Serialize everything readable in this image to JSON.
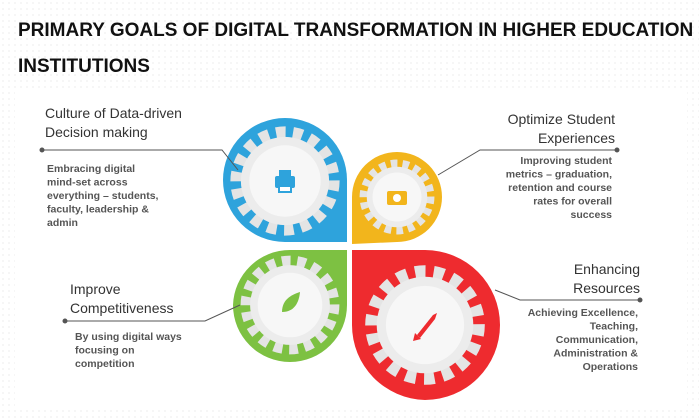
{
  "header": {
    "title_lines": [
      "PRIMARY GOALS OF DIGITAL TRANSFORMATION IN HIGHER EDUCATION",
      "INSTITUTIONS"
    ]
  },
  "goals": [
    {
      "heading": [
        "Culture of Data-driven",
        "Decision making"
      ],
      "description": [
        "Embracing digital",
        "mind-set across",
        "everything – students,",
        "faculty, leadership &",
        "admin"
      ]
    },
    {
      "heading": [
        "Optimize Student",
        "Experiences"
      ],
      "description": [
        "Improving student",
        "metrics – graduation,",
        "retention and course",
        "rates for overall",
        "success"
      ]
    },
    {
      "heading": [
        "Improve",
        "Competitiveness"
      ],
      "description": [
        "By using digital ways",
        "focusing on",
        "competition"
      ]
    },
    {
      "heading": [
        "Enhancing",
        "Resources"
      ],
      "description": [
        "Achieving Excellence,",
        "Teaching,",
        "Communication,",
        "Administration &",
        "Operations"
      ]
    }
  ]
}
